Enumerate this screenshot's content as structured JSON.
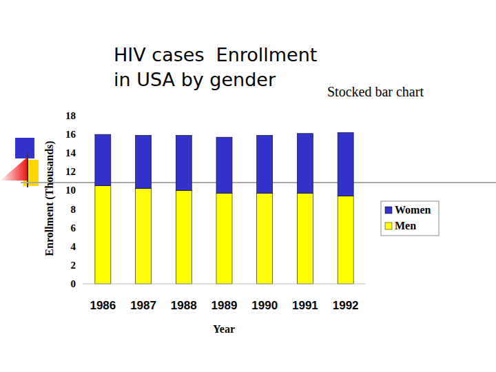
{
  "chart_data": {
    "type": "bar",
    "title": "HIV cases  Enrollment\nin USA by gender",
    "annotation": "Stocked bar chart",
    "x_label": "Year",
    "y_label": "Enrollment (Thousands)",
    "categories": [
      "1986",
      "1987",
      "1988",
      "1989",
      "1990",
      "1991",
      "1992"
    ],
    "series": [
      {
        "name": "Men",
        "color": "#ffff00",
        "values": [
          10.5,
          10.2,
          10.0,
          9.7,
          9.7,
          9.7,
          9.4
        ]
      },
      {
        "name": "Women",
        "color": "#3333cc",
        "values": [
          5.5,
          5.7,
          5.9,
          6.0,
          6.2,
          6.4,
          6.8
        ]
      }
    ],
    "stacked": true,
    "legend": "right",
    "grid": false,
    "ylim": [
      0,
      18
    ],
    "yticks": [
      0,
      2,
      4,
      6,
      8,
      10,
      12,
      14,
      16,
      18
    ]
  }
}
